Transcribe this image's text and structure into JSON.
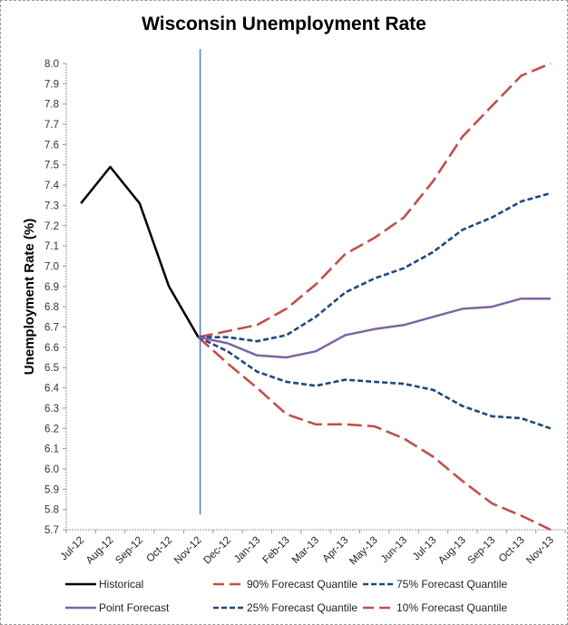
{
  "chart_data": {
    "type": "line",
    "title": "Wisconsin Unemployment Rate",
    "xlabel": "",
    "ylabel": "Unemployment Rate (%)",
    "ylim": [
      5.7,
      8.0
    ],
    "ytick_step": 0.1,
    "ytick_labels": [
      "5.7",
      "5.8",
      "5.9",
      "6.0",
      "6.1",
      "6.2",
      "6.3",
      "6.4",
      "6.5",
      "6.6",
      "6.7",
      "6.8",
      "6.9",
      "7.0",
      "7.1",
      "7.2",
      "7.3",
      "7.4",
      "7.5",
      "7.6",
      "7.7",
      "7.8",
      "7.9",
      "8.0"
    ],
    "categories": [
      "Jul-12",
      "Aug-12",
      "Sep-12",
      "Oct-12",
      "Nov-12",
      "Dec-12",
      "Jan-13",
      "Feb-13",
      "Mar-13",
      "Apr-13",
      "May-13",
      "Jun-13",
      "Jul-13",
      "Aug-13",
      "Sep-13",
      "Oct-13",
      "Nov-13"
    ],
    "grid": false,
    "legend_position": "bottom",
    "forecast_start_marker": "Nov-12",
    "series": [
      {
        "name": "Historical",
        "color": "#000000",
        "style": "solid",
        "values": [
          7.31,
          7.49,
          7.31,
          6.9,
          6.65,
          null,
          null,
          null,
          null,
          null,
          null,
          null,
          null,
          null,
          null,
          null,
          null
        ]
      },
      {
        "name": "90% Forecast Quantile",
        "color": "#c0504d",
        "style": "long-dash",
        "values": [
          null,
          null,
          null,
          null,
          6.65,
          6.68,
          6.71,
          6.79,
          6.91,
          7.06,
          7.14,
          7.24,
          7.42,
          7.64,
          7.79,
          7.94,
          8.0
        ]
      },
      {
        "name": "75% Forecast Quantile",
        "color": "#1f497d",
        "style": "short-dash",
        "values": [
          null,
          null,
          null,
          null,
          6.65,
          6.65,
          6.63,
          6.66,
          6.75,
          6.87,
          6.94,
          6.99,
          7.07,
          7.18,
          7.24,
          7.32,
          7.36
        ]
      },
      {
        "name": "Point Forecast",
        "color": "#8064a2",
        "style": "solid",
        "values": [
          null,
          null,
          null,
          null,
          6.65,
          6.62,
          6.56,
          6.55,
          6.58,
          6.66,
          6.69,
          6.71,
          6.75,
          6.79,
          6.8,
          6.84,
          6.84
        ]
      },
      {
        "name": "25% Forecast Quantile",
        "color": "#1f497d",
        "style": "short-dash",
        "values": [
          null,
          null,
          null,
          null,
          6.65,
          6.58,
          6.48,
          6.43,
          6.41,
          6.44,
          6.43,
          6.42,
          6.39,
          6.31,
          6.26,
          6.25,
          6.2
        ]
      },
      {
        "name": "10% Forecast Quantile",
        "color": "#c0504d",
        "style": "long-dash",
        "values": [
          null,
          null,
          null,
          null,
          6.65,
          6.52,
          6.4,
          6.27,
          6.22,
          6.22,
          6.21,
          6.15,
          6.06,
          5.94,
          5.83,
          5.77,
          5.7
        ]
      }
    ],
    "marker_line_color": "#4f81bd",
    "legend_order": [
      "Historical",
      "90% Forecast Quantile",
      "75% Forecast Quantile",
      "Point Forecast",
      "25% Forecast Quantile",
      "10% Forecast Quantile"
    ]
  }
}
